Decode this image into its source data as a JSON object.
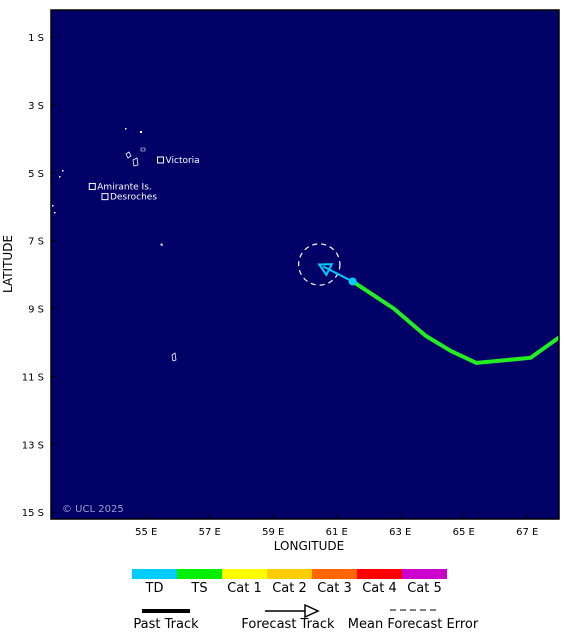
{
  "map": {
    "xlabel": "LONGITUDE",
    "ylabel": "LATITUDE",
    "lon_ticks": [
      "55 E",
      "57 E",
      "59 E",
      "61 E",
      "63 E",
      "65 E",
      "67 E"
    ],
    "lat_ticks": [
      "1 S",
      "3 S",
      "5 S",
      "7 S",
      "9 S",
      "11 S",
      "13 S",
      "15 S"
    ],
    "copyright": "© UCL 2025",
    "ocean_color": "#000066",
    "places": [
      {
        "name": "Victoria",
        "lon": 55.45,
        "lat": -4.62
      },
      {
        "name": "Amirante Is.",
        "lon": 53.3,
        "lat": -5.4
      },
      {
        "name": "Desroches",
        "lon": 53.7,
        "lat": -5.7
      }
    ]
  },
  "storm": {
    "past_track_color": "#22ee22",
    "past_track": [
      {
        "lon": 61.5,
        "lat": -8.2
      },
      {
        "lon": 62.8,
        "lat": -9.0
      },
      {
        "lon": 63.8,
        "lat": -9.8
      },
      {
        "lon": 64.6,
        "lat": -10.25
      },
      {
        "lon": 65.4,
        "lat": -10.6
      },
      {
        "lon": 67.1,
        "lat": -10.45
      },
      {
        "lon": 68.0,
        "lat": -9.85
      }
    ],
    "current_position": {
      "lon": 61.5,
      "lat": -8.2,
      "category": "TD"
    },
    "forecast_position": {
      "lon": 60.45,
      "lat": -7.7,
      "category": "TD"
    },
    "forecast_error_radius_deg": 0.65
  },
  "legend": {
    "categories": [
      {
        "label": "TD",
        "color": "#00ccff"
      },
      {
        "label": "TS",
        "color": "#00ee00"
      },
      {
        "label": "Cat 1",
        "color": "#ffff00"
      },
      {
        "label": "Cat 2",
        "color": "#ffcc00"
      },
      {
        "label": "Cat 3",
        "color": "#ff6600"
      },
      {
        "label": "Cat 4",
        "color": "#ff0000"
      },
      {
        "label": "Cat 5",
        "color": "#cc00cc"
      }
    ],
    "past_track_label": "Past Track",
    "forecast_track_label": "Forecast Track",
    "error_label": "Mean Forecast Error"
  }
}
